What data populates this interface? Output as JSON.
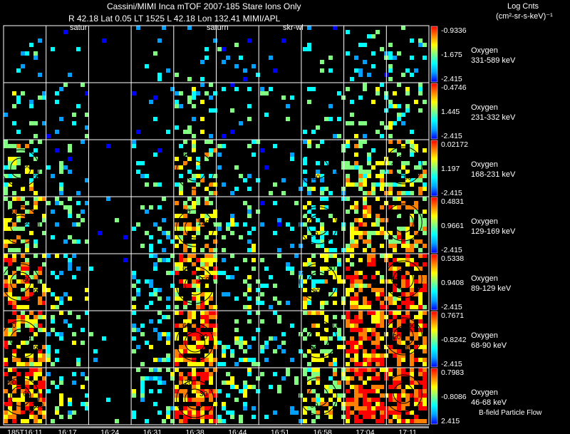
{
  "header": {
    "title": "Cassini/MIMI Inca mTOF  2007-185   Stare    Ions Only",
    "subtitle": "R        42.18 Lat 0.05 LT 1525 L          42.18 Lon          132.41   MIMI/APL",
    "units_title": "Log Cnts",
    "units_label": "(cm²-sr-s-keV)⁻¹"
  },
  "overlays": {
    "saturn_label_1": "satur",
    "saturn_label_2": "saturn",
    "skr_label": "skr-wl"
  },
  "footer": {
    "bfield_label": "B-field Particle Flow"
  },
  "colors": {
    "background": "#000000",
    "grid": "#ffffff",
    "colormap": [
      "#0000ff",
      "#00a0ff",
      "#00ffff",
      "#80ff80",
      "#ffff00",
      "#ff8000",
      "#ff0000"
    ]
  },
  "chart_data": {
    "type": "heatmap",
    "x_ticks": [
      "185T16:11",
      "16:17",
      "16:24",
      "16:31",
      "16:38",
      "16:44",
      "16:51",
      "16:58",
      "17:04",
      "17:11"
    ],
    "panels": [
      {
        "species": "Oxygen",
        "energy": "331-589 keV",
        "cmax": "-0.9336",
        "cmid": "-1.675",
        "cmin": "-2.415",
        "density": 0.12
      },
      {
        "species": "Oxygen",
        "energy": "231-332 keV",
        "cmax": "-0.4746",
        "cmid": "1.445",
        "cmin": "-2.415",
        "density": 0.22
      },
      {
        "species": "Oxygen",
        "energy": "168-231 keV",
        "cmax": "0.02172",
        "cmid": "1.197",
        "cmin": "-2.415",
        "density": 0.35,
        "contours": [
          "90",
          "60",
          "30",
          "60",
          "90",
          "120",
          "90",
          "30",
          "60"
        ]
      },
      {
        "species": "Oxygen",
        "energy": "129-169 keV",
        "cmax": "0.4831",
        "cmid": "0.9661",
        "cmin": "-2.415",
        "density": 0.45,
        "contours": [
          "60",
          "30",
          "60",
          "90",
          "120",
          "30",
          "60"
        ]
      },
      {
        "species": "Oxygen",
        "energy": "89-129 keV",
        "cmax": "0.5338",
        "cmid": "0.9408",
        "cmin": "-2.415",
        "density": 0.55,
        "contours": [
          "30",
          "60",
          "90",
          "60",
          "150",
          "120",
          "30",
          "60"
        ]
      },
      {
        "species": "Oxygen",
        "energy": "68-90 keV",
        "cmax": "0.7671",
        "cmid": "-0.8242",
        "cmin": "-2.415",
        "density": 0.6,
        "contours": [
          "30",
          "60",
          "90",
          "60",
          "90",
          "30",
          "150",
          "120",
          "30",
          "60"
        ]
      },
      {
        "species": "Oxygen",
        "energy": "46-68 keV",
        "cmax": "0.7983",
        "cmid": "-0.8086",
        "cmin": "2.415",
        "density": 0.65,
        "contours": [
          "90",
          "60",
          "150",
          "120",
          "30",
          "60"
        ]
      }
    ]
  }
}
